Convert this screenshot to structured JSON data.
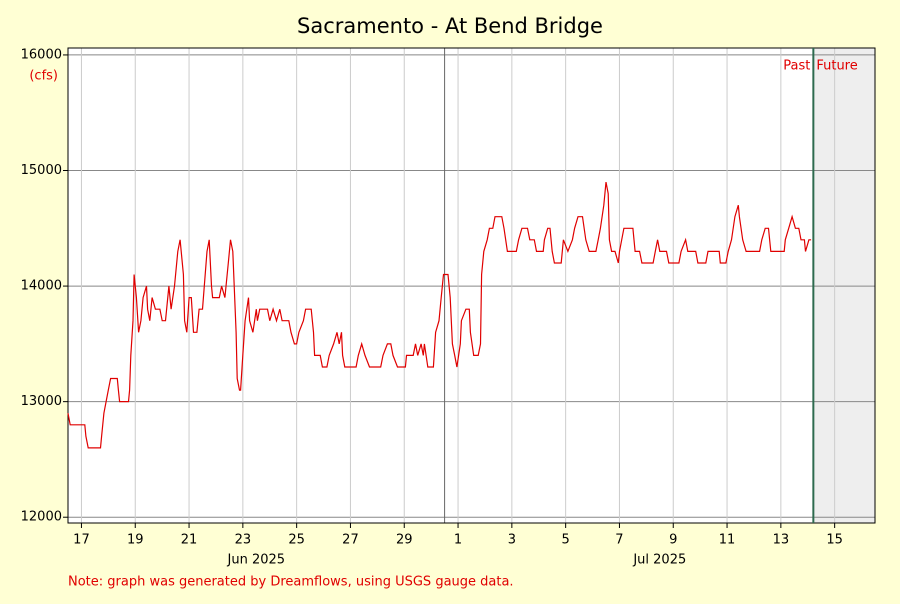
{
  "chart_data": {
    "type": "line",
    "title": "Sacramento - At Bend Bridge",
    "y_label": "(cfs)",
    "past_label": "Past",
    "future_label": "Future",
    "now": "2025-07-14T17:00",
    "note": "Note: graph was generated by Dreamflows, using USGS gauge data.",
    "xlim": [
      "2025-06-17T00:00",
      "2025-07-17T00:00"
    ],
    "xticks": [
      {
        "value": "2025-06-17T12:00",
        "label": "17"
      },
      {
        "value": "2025-06-19T12:00",
        "label": "19"
      },
      {
        "value": "2025-06-21T12:00",
        "label": "21"
      },
      {
        "value": "2025-06-23T12:00",
        "label": "23"
      },
      {
        "value": "2025-06-25T12:00",
        "label": "25"
      },
      {
        "value": "2025-06-27T12:00",
        "label": "27"
      },
      {
        "value": "2025-06-29T12:00",
        "label": "29"
      },
      {
        "value": "2025-07-01T12:00",
        "label": "1"
      },
      {
        "value": "2025-07-03T12:00",
        "label": "3"
      },
      {
        "value": "2025-07-05T12:00",
        "label": "5"
      },
      {
        "value": "2025-07-07T12:00",
        "label": "7"
      },
      {
        "value": "2025-07-09T12:00",
        "label": "9"
      },
      {
        "value": "2025-07-11T12:00",
        "label": "11"
      },
      {
        "value": "2025-07-13T12:00",
        "label": "13"
      },
      {
        "value": "2025-07-15T12:00",
        "label": "15"
      }
    ],
    "month_labels": [
      {
        "value": "2025-06-24T00:00",
        "label": "Jun 2025"
      },
      {
        "value": "2025-07-09T00:00",
        "label": "Jul 2025"
      }
    ],
    "month_divider": "2025-07-01T00:00",
    "ylim": [
      11950,
      16060
    ],
    "yticks": [
      12000,
      13000,
      14000,
      15000,
      16000
    ],
    "grid": true,
    "x": [
      "2025-06-17T00:00",
      "2025-06-17T02:00",
      "2025-06-17T15:00",
      "2025-06-17T16:00",
      "2025-06-17T18:00",
      "2025-06-18T05:00",
      "2025-06-18T06:00",
      "2025-06-18T08:00",
      "2025-06-18T10:00",
      "2025-06-18T12:00",
      "2025-06-18T14:00",
      "2025-06-18T20:00",
      "2025-06-18T21:00",
      "2025-06-18T22:00",
      "2025-06-19T06:00",
      "2025-06-19T07:00",
      "2025-06-19T08:00",
      "2025-06-19T10:00",
      "2025-06-19T11:00",
      "2025-06-19T13:00",
      "2025-06-19T15:00",
      "2025-06-19T17:00",
      "2025-06-19T19:00",
      "2025-06-19T22:00",
      "2025-06-19T23:00",
      "2025-06-20T01:00",
      "2025-06-20T03:00",
      "2025-06-20T06:00",
      "2025-06-20T10:00",
      "2025-06-20T12:00",
      "2025-06-20T15:00",
      "2025-06-20T18:00",
      "2025-06-20T20:00",
      "2025-06-20T23:00",
      "2025-06-21T02:00",
      "2025-06-21T04:00",
      "2025-06-21T07:00",
      "2025-06-21T08:00",
      "2025-06-21T10:00",
      "2025-06-21T12:00",
      "2025-06-21T14:00",
      "2025-06-21T16:00",
      "2025-06-21T19:00",
      "2025-06-21T21:00",
      "2025-06-22T00:00",
      "2025-06-22T04:00",
      "2025-06-22T06:00",
      "2025-06-22T08:00",
      "2025-06-22T09:00",
      "2025-06-22T15:00",
      "2025-06-22T17:00",
      "2025-06-22T20:00",
      "2025-06-22T23:00",
      "2025-06-23T01:00",
      "2025-06-23T03:00",
      "2025-06-23T06:00",
      "2025-06-23T07:00",
      "2025-06-23T09:00",
      "2025-06-23T10:00",
      "2025-06-23T12:00",
      "2025-06-23T14:00",
      "2025-06-23T17:00",
      "2025-06-23T18:00",
      "2025-06-23T21:00",
      "2025-06-24T00:00",
      "2025-06-24T01:00",
      "2025-06-24T03:00",
      "2025-06-24T10:00",
      "2025-06-24T12:00",
      "2025-06-24T15:00",
      "2025-06-24T18:00",
      "2025-06-24T21:00",
      "2025-06-24T23:00",
      "2025-06-25T05:00",
      "2025-06-25T07:00",
      "2025-06-25T10:00",
      "2025-06-25T12:00",
      "2025-06-25T14:00",
      "2025-06-25T18:00",
      "2025-06-25T20:00",
      "2025-06-26T01:00",
      "2025-06-26T03:00",
      "2025-06-26T04:00",
      "2025-06-26T09:00",
      "2025-06-26T11:00",
      "2025-06-26T15:00",
      "2025-06-26T17:00",
      "2025-06-26T21:00",
      "2025-06-27T00:00",
      "2025-06-27T02:00",
      "2025-06-27T04:00",
      "2025-06-27T05:00",
      "2025-06-27T07:00",
      "2025-06-27T17:00",
      "2025-06-27T19:00",
      "2025-06-27T22:00",
      "2025-06-28T01:00",
      "2025-06-28T05:00",
      "2025-06-28T15:00",
      "2025-06-28T17:00",
      "2025-06-28T21:00",
      "2025-06-29T00:00",
      "2025-06-29T02:00",
      "2025-06-29T06:00",
      "2025-06-29T13:00",
      "2025-06-29T14:00",
      "2025-06-29T20:00",
      "2025-06-29T22:00",
      "2025-06-30T00:00",
      "2025-06-30T03:00",
      "2025-06-30T05:00",
      "2025-06-30T06:00",
      "2025-06-30T09:00",
      "2025-06-30T14:00",
      "2025-06-30T16:00",
      "2025-06-30T19:00",
      "2025-06-30T21:00",
      "2025-06-30T23:00",
      "2025-07-01T03:00",
      "2025-07-01T05:00",
      "2025-07-01T07:00",
      "2025-07-01T09:00",
      "2025-07-01T11:00",
      "2025-07-01T14:00",
      "2025-07-01T15:00",
      "2025-07-01T19:00",
      "2025-07-01T22:00",
      "2025-07-01T23:00",
      "2025-07-02T02:00",
      "2025-07-02T06:00",
      "2025-07-02T08:00",
      "2025-07-02T09:00",
      "2025-07-02T11:00",
      "2025-07-02T14:00",
      "2025-07-02T16:00",
      "2025-07-02T19:00",
      "2025-07-02T21:00",
      "2025-07-03T03:00",
      "2025-07-03T05:00",
      "2025-07-03T08:00",
      "2025-07-03T16:00",
      "2025-07-03T18:00",
      "2025-07-03T21:00",
      "2025-07-04T02:00",
      "2025-07-04T04:00",
      "2025-07-04T08:00",
      "2025-07-04T10:00",
      "2025-07-04T16:00",
      "2025-07-04T17:00",
      "2025-07-04T20:00",
      "2025-07-04T22:00",
      "2025-07-05T00:00",
      "2025-07-05T02:00",
      "2025-07-05T08:00",
      "2025-07-05T10:00",
      "2025-07-05T14:00",
      "2025-07-05T18:00",
      "2025-07-05T20:00",
      "2025-07-05T23:00",
      "2025-07-06T03:00",
      "2025-07-06T06:00",
      "2025-07-06T09:00",
      "2025-07-06T15:00",
      "2025-07-06T17:00",
      "2025-07-06T19:00",
      "2025-07-06T22:00",
      "2025-07-07T00:00",
      "2025-07-07T02:00",
      "2025-07-07T03:00",
      "2025-07-07T05:00",
      "2025-07-07T08:00",
      "2025-07-07T11:00",
      "2025-07-07T12:00",
      "2025-07-07T14:00",
      "2025-07-07T16:00",
      "2025-07-08T00:00",
      "2025-07-08T02:00",
      "2025-07-08T06:00",
      "2025-07-08T08:00",
      "2025-07-08T18:00",
      "2025-07-08T20:00",
      "2025-07-08T22:00",
      "2025-07-09T00:00",
      "2025-07-09T06:00",
      "2025-07-09T08:00",
      "2025-07-09T17:00",
      "2025-07-09T19:00",
      "2025-07-09T23:00",
      "2025-07-10T01:00",
      "2025-07-10T08:00",
      "2025-07-10T10:00",
      "2025-07-10T17:00",
      "2025-07-10T19:00",
      "2025-07-11T05:00",
      "2025-07-11T06:00",
      "2025-07-11T11:00",
      "2025-07-11T13:00",
      "2025-07-11T16:00",
      "2025-07-11T19:00",
      "2025-07-11T22:00",
      "2025-07-11T23:00",
      "2025-07-12T02:00",
      "2025-07-12T05:00",
      "2025-07-12T17:00",
      "2025-07-12T19:00",
      "2025-07-12T22:00",
      "2025-07-13T01:00",
      "2025-07-13T03:00",
      "2025-07-13T15:00",
      "2025-07-13T16:00",
      "2025-07-13T19:00",
      "2025-07-13T22:00",
      "2025-07-14T01:00",
      "2025-07-14T04:00",
      "2025-07-14T06:00",
      "2025-07-14T09:00",
      "2025-07-14T10:00",
      "2025-07-14T13:00",
      "2025-07-14T15:00"
    ],
    "series": [
      {
        "name": "Flow",
        "color": "#e00000",
        "values": [
          12900,
          12800,
          12800,
          12700,
          12600,
          12600,
          12700,
          12900,
          13000,
          13100,
          13200,
          13200,
          13100,
          13000,
          13000,
          13100,
          13400,
          13700,
          14100,
          13900,
          13600,
          13700,
          13900,
          14000,
          13800,
          13700,
          13900,
          13800,
          13800,
          13700,
          13700,
          14000,
          13800,
          14000,
          14300,
          14400,
          14100,
          13700,
          13600,
          13900,
          13900,
          13600,
          13600,
          13800,
          13800,
          14300,
          14400,
          14000,
          13900,
          13900,
          14000,
          13900,
          14200,
          14400,
          14300,
          13600,
          13200,
          13100,
          13100,
          13400,
          13700,
          13900,
          13700,
          13600,
          13800,
          13700,
          13800,
          13800,
          13700,
          13800,
          13700,
          13800,
          13700,
          13700,
          13600,
          13500,
          13500,
          13600,
          13700,
          13800,
          13800,
          13600,
          13400,
          13400,
          13300,
          13300,
          13400,
          13500,
          13600,
          13500,
          13600,
          13400,
          13300,
          13300,
          13400,
          13500,
          13400,
          13300,
          13300,
          13400,
          13500,
          13500,
          13400,
          13300,
          13300,
          13400,
          13400,
          13500,
          13400,
          13500,
          13400,
          13500,
          13300,
          13300,
          13600,
          13700,
          13900,
          14100,
          14100,
          13900,
          13500,
          13400,
          13300,
          13500,
          13700,
          13800,
          13800,
          13600,
          13400,
          13400,
          13500,
          14100,
          14300,
          14400,
          14500,
          14500,
          14600,
          14600,
          14500,
          14300,
          14300,
          14400,
          14500,
          14500,
          14400,
          14400,
          14300,
          14300,
          14400,
          14500,
          14500,
          14300,
          14200,
          14200,
          14400,
          14300,
          14400,
          14500,
          14600,
          14600,
          14400,
          14300,
          14300,
          14400,
          14500,
          14700,
          14900,
          14800,
          14400,
          14300,
          14300,
          14200,
          14300,
          14400,
          14500,
          14500,
          14300,
          14300,
          14200,
          14200,
          14300,
          14400,
          14300,
          14300,
          14200,
          14200,
          14300,
          14400,
          14300,
          14300,
          14200,
          14200,
          14300,
          14300,
          14200,
          14200,
          14300,
          14400,
          14600,
          14700,
          14600,
          14400,
          14300,
          14300,
          14400,
          14500,
          14500,
          14300,
          14300,
          14400,
          14500,
          14600,
          14500,
          14500,
          14400,
          14400,
          14300,
          14400,
          14400
        ]
      }
    ]
  }
}
